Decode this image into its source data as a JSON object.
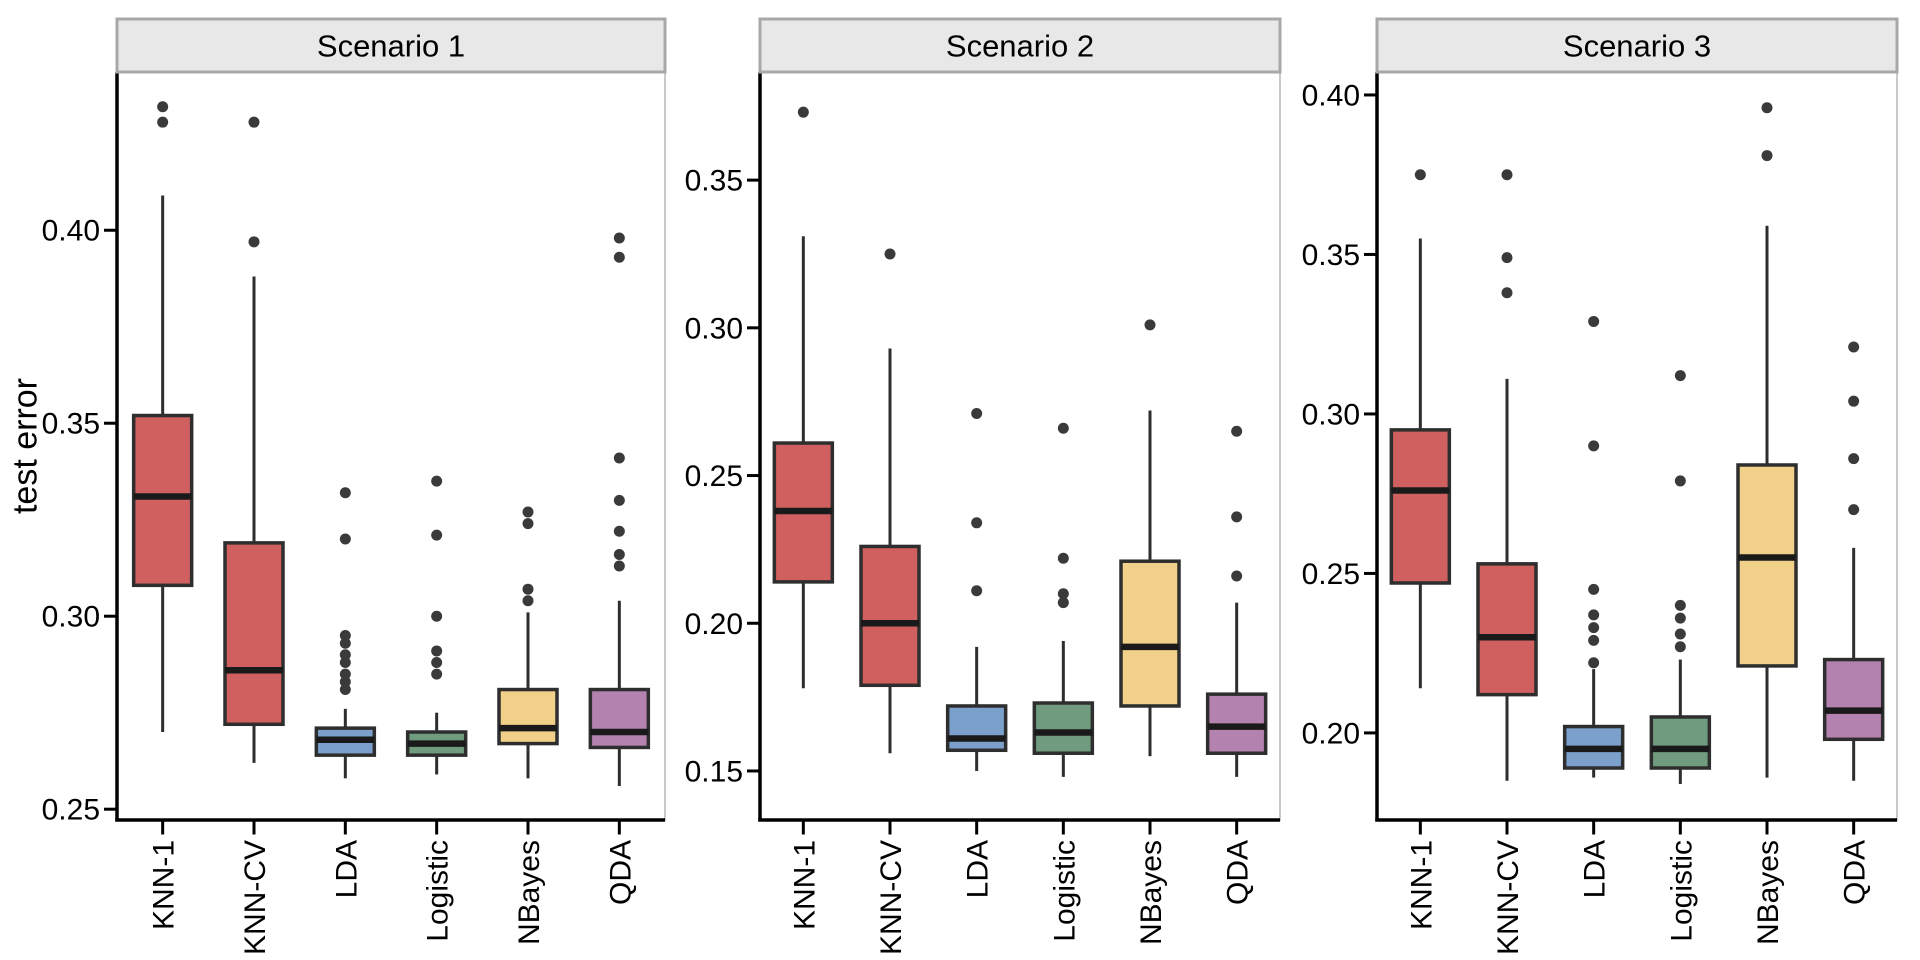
{
  "chart_data": {
    "type": "boxplot",
    "title": "",
    "ylabel": "test error",
    "xlabel": "",
    "grid": "off",
    "legend": "none",
    "facet_layout": "3 panels side by side, free y scales",
    "categories": [
      "KNN-1",
      "KNN-CV",
      "LDA",
      "Logistic",
      "NBayes",
      "QDA"
    ],
    "category_colors": [
      "#D05F5F",
      "#D05F5F",
      "#7BA0CC",
      "#709B7E",
      "#F1D089",
      "#B382AF"
    ],
    "panels": [
      {
        "title": "Scenario 1",
        "ylim": [
          0.2472,
          0.441
        ],
        "yticks": [
          0.25,
          0.3,
          0.35,
          0.4
        ],
        "ytick_labels": [
          "0.25",
          "0.30",
          "0.35",
          "0.40"
        ],
        "boxes": [
          {
            "category": "KNN-1",
            "whisker_low": 0.27,
            "q1": 0.308,
            "median": 0.331,
            "q3": 0.352,
            "whisker_high": 0.409,
            "outliers": [
              0.428,
              0.432
            ]
          },
          {
            "category": "KNN-CV",
            "whisker_low": 0.262,
            "q1": 0.272,
            "median": 0.286,
            "q3": 0.319,
            "whisker_high": 0.388,
            "outliers": [
              0.397,
              0.428
            ]
          },
          {
            "category": "LDA",
            "whisker_low": 0.258,
            "q1": 0.264,
            "median": 0.268,
            "q3": 0.271,
            "whisker_high": 0.276,
            "outliers": [
              0.281,
              0.283,
              0.285,
              0.288,
              0.29,
              0.293,
              0.295,
              0.32,
              0.332
            ]
          },
          {
            "category": "Logistic",
            "whisker_low": 0.259,
            "q1": 0.264,
            "median": 0.267,
            "q3": 0.27,
            "whisker_high": 0.275,
            "outliers": [
              0.285,
              0.288,
              0.291,
              0.3,
              0.321,
              0.335
            ]
          },
          {
            "category": "NBayes",
            "whisker_low": 0.258,
            "q1": 0.267,
            "median": 0.271,
            "q3": 0.281,
            "whisker_high": 0.301,
            "outliers": [
              0.304,
              0.307,
              0.324,
              0.327
            ]
          },
          {
            "category": "QDA",
            "whisker_low": 0.256,
            "q1": 0.266,
            "median": 0.27,
            "q3": 0.281,
            "whisker_high": 0.304,
            "outliers": [
              0.313,
              0.316,
              0.322,
              0.33,
              0.341,
              0.393,
              0.398
            ]
          }
        ]
      },
      {
        "title": "Scenario 2",
        "ylim": [
          0.1334,
          0.3866
        ],
        "yticks": [
          0.15,
          0.2,
          0.25,
          0.3,
          0.35
        ],
        "ytick_labels": [
          "0.15",
          "0.20",
          "0.25",
          "0.30",
          "0.35"
        ],
        "boxes": [
          {
            "category": "KNN-1",
            "whisker_low": 0.178,
            "q1": 0.214,
            "median": 0.238,
            "q3": 0.261,
            "whisker_high": 0.331,
            "outliers": [
              0.373
            ]
          },
          {
            "category": "KNN-CV",
            "whisker_low": 0.156,
            "q1": 0.179,
            "median": 0.2,
            "q3": 0.226,
            "whisker_high": 0.293,
            "outliers": [
              0.325
            ]
          },
          {
            "category": "LDA",
            "whisker_low": 0.15,
            "q1": 0.157,
            "median": 0.161,
            "q3": 0.172,
            "whisker_high": 0.192,
            "outliers": [
              0.211,
              0.234,
              0.271
            ]
          },
          {
            "category": "Logistic",
            "whisker_low": 0.148,
            "q1": 0.156,
            "median": 0.163,
            "q3": 0.173,
            "whisker_high": 0.194,
            "outliers": [
              0.207,
              0.21,
              0.222,
              0.266
            ]
          },
          {
            "category": "NBayes",
            "whisker_low": 0.155,
            "q1": 0.172,
            "median": 0.192,
            "q3": 0.221,
            "whisker_high": 0.272,
            "outliers": [
              0.301
            ]
          },
          {
            "category": "QDA",
            "whisker_low": 0.148,
            "q1": 0.156,
            "median": 0.165,
            "q3": 0.176,
            "whisker_high": 0.207,
            "outliers": [
              0.216,
              0.236,
              0.265
            ]
          }
        ]
      },
      {
        "title": "Scenario 3",
        "ylim": [
          0.1727,
          0.4072
        ],
        "yticks": [
          0.2,
          0.25,
          0.3,
          0.35,
          0.4
        ],
        "ytick_labels": [
          "0.20",
          "0.25",
          "0.30",
          "0.35",
          "0.40"
        ],
        "boxes": [
          {
            "category": "KNN-1",
            "whisker_low": 0.214,
            "q1": 0.247,
            "median": 0.276,
            "q3": 0.295,
            "whisker_high": 0.355,
            "outliers": [
              0.375
            ]
          },
          {
            "category": "KNN-CV",
            "whisker_low": 0.185,
            "q1": 0.212,
            "median": 0.23,
            "q3": 0.253,
            "whisker_high": 0.311,
            "outliers": [
              0.338,
              0.349,
              0.375
            ]
          },
          {
            "category": "LDA",
            "whisker_low": 0.186,
            "q1": 0.189,
            "median": 0.195,
            "q3": 0.202,
            "whisker_high": 0.22,
            "outliers": [
              0.222,
              0.229,
              0.233,
              0.237,
              0.245,
              0.29,
              0.329
            ]
          },
          {
            "category": "Logistic",
            "whisker_low": 0.184,
            "q1": 0.189,
            "median": 0.195,
            "q3": 0.205,
            "whisker_high": 0.223,
            "outliers": [
              0.227,
              0.231,
              0.236,
              0.24,
              0.279,
              0.312
            ]
          },
          {
            "category": "NBayes",
            "whisker_low": 0.186,
            "q1": 0.221,
            "median": 0.255,
            "q3": 0.284,
            "whisker_high": 0.359,
            "outliers": [
              0.381,
              0.396
            ]
          },
          {
            "category": "QDA",
            "whisker_low": 0.185,
            "q1": 0.198,
            "median": 0.207,
            "q3": 0.223,
            "whisker_high": 0.258,
            "outliers": [
              0.27,
              0.286,
              0.304,
              0.321
            ]
          }
        ]
      }
    ]
  },
  "style": {
    "strip_fill": "#E8E8E8",
    "strip_border": "#A8A8A8",
    "panel_border": "#C9C9C9",
    "panel_fill": "#FFFFFF",
    "axis_color": "#000000",
    "box_border_color": "#2E2E2E",
    "median_color": "#1A1A1A",
    "whisker_color": "#2E2E2E",
    "outlier_color": "#3A3A3A",
    "text_color": "#000000"
  }
}
